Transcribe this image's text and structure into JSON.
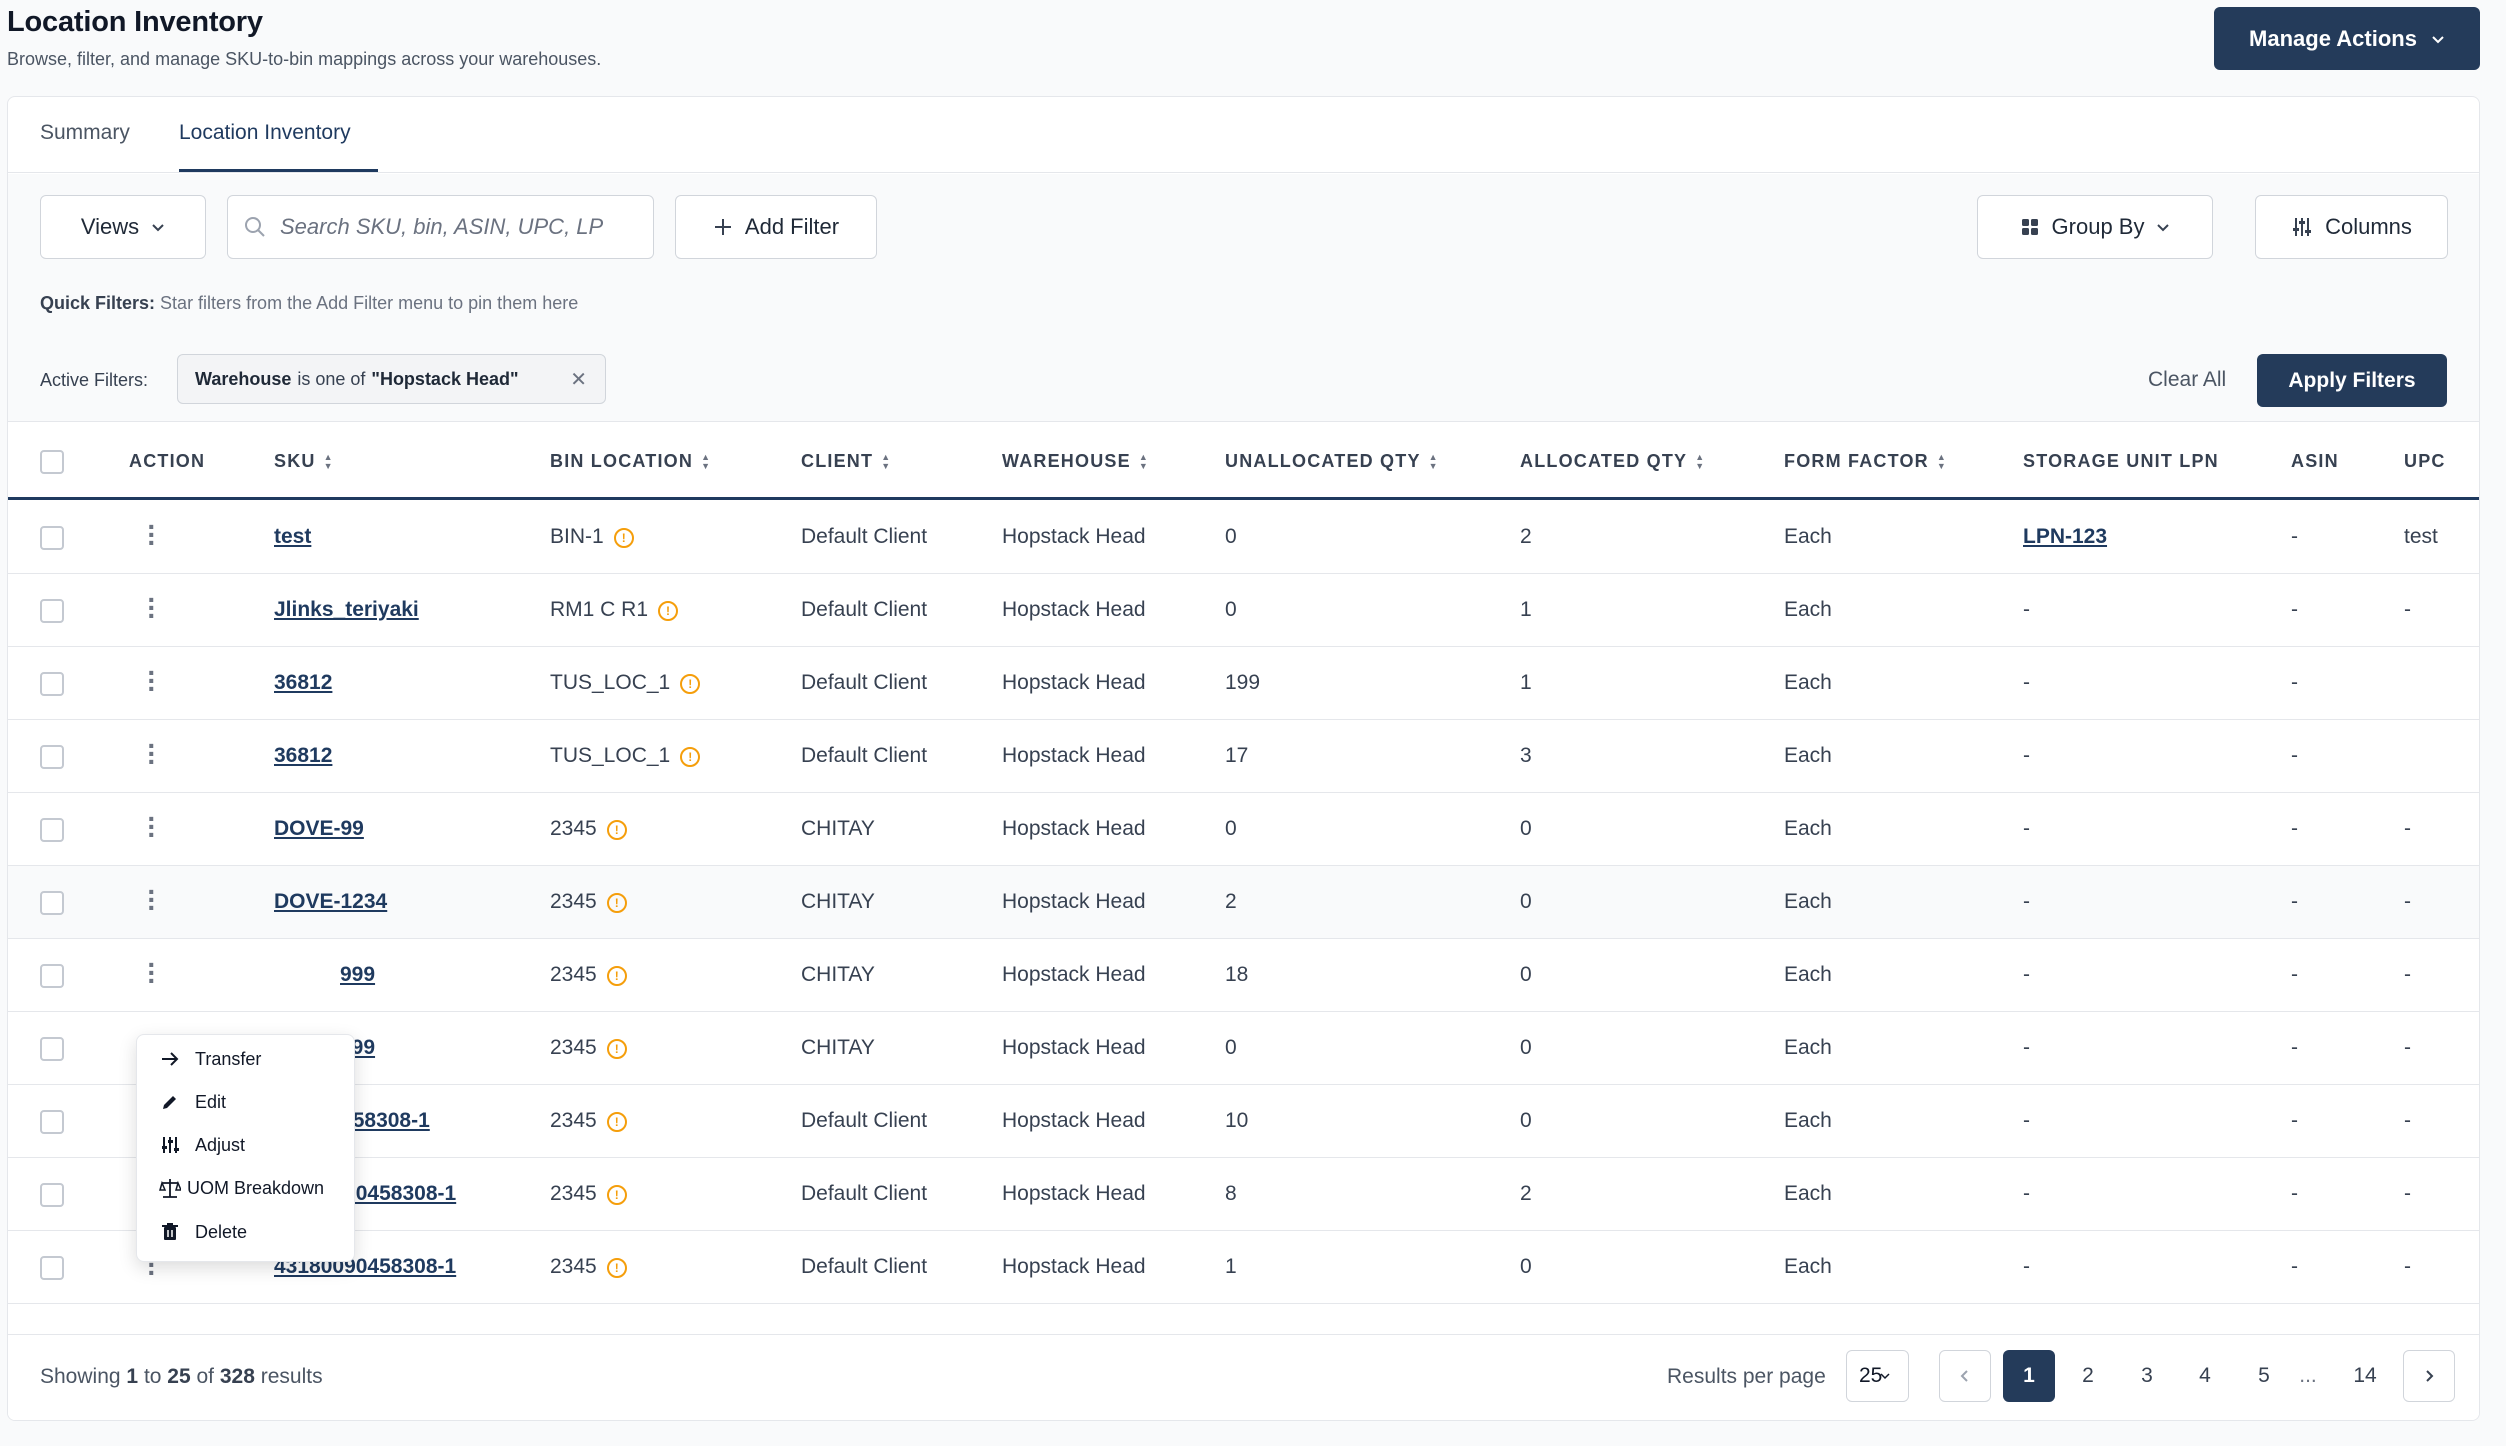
{
  "header": {
    "title": "Location Inventory",
    "subtitle": "Browse, filter, and manage SKU-to-bin mappings across your warehouses.",
    "manage_actions": "Manage Actions"
  },
  "tabs": [
    {
      "label": "Summary",
      "active": false
    },
    {
      "label": "Location Inventory",
      "active": true
    }
  ],
  "toolbar": {
    "views": "Views",
    "search_placeholder": "Search SKU, bin, ASIN, UPC, LP",
    "add_filter": "Add Filter",
    "group_by": "Group By",
    "columns": "Columns"
  },
  "quick_filters": {
    "label": "Quick Filters:",
    "hint": "Star filters from the Add Filter menu to pin them here"
  },
  "active_filters": {
    "label": "Active Filters:",
    "chip_field": "Warehouse",
    "chip_op": "is one of",
    "chip_value": "\"Hopstack Head\"",
    "clear_all": "Clear All",
    "apply": "Apply Filters"
  },
  "table": {
    "headers": {
      "action": "ACTION",
      "sku": "SKU",
      "bin": "BIN LOCATION",
      "client": "CLIENT",
      "warehouse": "WAREHOUSE",
      "unalloc": "UNALLOCATED QTY",
      "alloc": "ALLOCATED QTY",
      "form": "FORM FACTOR",
      "lpn": "STORAGE UNIT LPN",
      "asin": "ASIN",
      "upc": "UPC"
    },
    "rows": [
      {
        "sku": "test",
        "bin": "BIN-1",
        "client": "Default Client",
        "warehouse": "Hopstack Head",
        "unalloc": "0",
        "alloc": "2",
        "form": "Each",
        "lpn": "LPN-123",
        "asin": "-",
        "upc": "test"
      },
      {
        "sku": "Jlinks_teriyaki",
        "bin": "RM1 C R1",
        "client": "Default Client",
        "warehouse": "Hopstack Head",
        "unalloc": "0",
        "alloc": "1",
        "form": "Each",
        "lpn": "-",
        "asin": "-",
        "upc": "-"
      },
      {
        "sku": "36812",
        "bin": "TUS_LOC_1",
        "client": "Default Client",
        "warehouse": "Hopstack Head",
        "unalloc": "199",
        "alloc": "1",
        "form": "Each",
        "lpn": "-",
        "asin": "-",
        "upc": ""
      },
      {
        "sku": "36812",
        "bin": "TUS_LOC_1",
        "client": "Default Client",
        "warehouse": "Hopstack Head",
        "unalloc": "17",
        "alloc": "3",
        "form": "Each",
        "lpn": "-",
        "asin": "-",
        "upc": ""
      },
      {
        "sku": "DOVE-99",
        "bin": "2345",
        "client": "CHITAY",
        "warehouse": "Hopstack Head",
        "unalloc": "0",
        "alloc": "0",
        "form": "Each",
        "lpn": "-",
        "asin": "-",
        "upc": "-"
      },
      {
        "sku": "DOVE-1234",
        "bin": "2345",
        "client": "CHITAY",
        "warehouse": "Hopstack Head",
        "unalloc": "2",
        "alloc": "0",
        "form": "Each",
        "lpn": "-",
        "asin": "-",
        "upc": "-"
      },
      {
        "sku": "999",
        "bin": "2345",
        "client": "CHITAY",
        "warehouse": "Hopstack Head",
        "unalloc": "18",
        "alloc": "0",
        "form": "Each",
        "lpn": "-",
        "asin": "-",
        "upc": "-"
      },
      {
        "sku": "999",
        "bin": "2345",
        "client": "CHITAY",
        "warehouse": "Hopstack Head",
        "unalloc": "0",
        "alloc": "0",
        "form": "Each",
        "lpn": "-",
        "asin": "-",
        "upc": "-"
      },
      {
        "sku": "090458308-1",
        "bin": "2345",
        "client": "Default Client",
        "warehouse": "Hopstack Head",
        "unalloc": "10",
        "alloc": "0",
        "form": "Each",
        "lpn": "-",
        "asin": "-",
        "upc": "-"
      },
      {
        "sku": "43180090458308-1",
        "bin": "2345",
        "client": "Default Client",
        "warehouse": "Hopstack Head",
        "unalloc": "8",
        "alloc": "2",
        "form": "Each",
        "lpn": "-",
        "asin": "-",
        "upc": "-"
      },
      {
        "sku": "43180090458308-1",
        "bin": "2345",
        "client": "Default Client",
        "warehouse": "Hopstack Head",
        "unalloc": "1",
        "alloc": "0",
        "form": "Each",
        "lpn": "-",
        "asin": "-",
        "upc": "-"
      }
    ]
  },
  "action_menu": {
    "items": [
      "Transfer",
      "Edit",
      "Adjust",
      "UOM Breakdown",
      "Delete"
    ]
  },
  "footer": {
    "showing_prefix": "Showing",
    "from": "1",
    "to_word": "to",
    "to": "25",
    "of_word": "of",
    "total": "328",
    "results_word": "results",
    "results_per_page_label": "Results per page",
    "results_per_page": "25",
    "pages": [
      "1",
      "2",
      "3",
      "4",
      "5",
      "...",
      "14"
    ],
    "current_page": "1"
  },
  "colors": {
    "brand": "#243b5a",
    "warning": "#f59e0b"
  }
}
